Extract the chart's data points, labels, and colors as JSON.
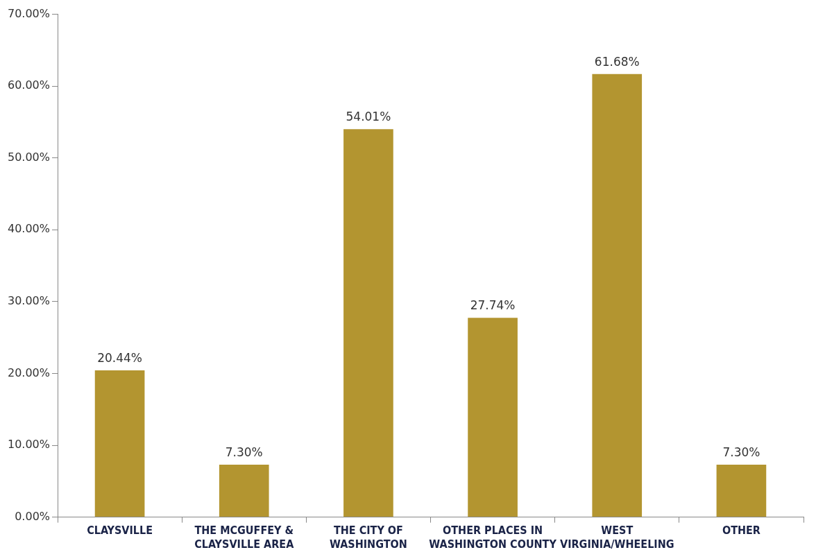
{
  "chart_data": {
    "type": "bar",
    "categories": [
      "CLAYSVILLE",
      "THE MCGUFFEY & CLAYSVILLE AREA",
      "THE CITY OF WASHINGTON",
      "OTHER PLACES IN WASHINGTON COUNTY",
      "WEST VIRGINIA/WHEELING",
      "OTHER"
    ],
    "values": [
      20.44,
      7.3,
      54.01,
      27.74,
      61.68,
      7.3
    ],
    "value_labels": [
      "20.44%",
      "7.30%",
      "54.01%",
      "27.74%",
      "61.68%",
      "7.30%"
    ],
    "color": "#b39530",
    "ylim": [
      0,
      70
    ],
    "yticks": [
      {
        "value": 0,
        "label": "0.00%"
      },
      {
        "value": 10,
        "label": "10.00%"
      },
      {
        "value": 20,
        "label": "20.00%"
      },
      {
        "value": 30,
        "label": "30.00%"
      },
      {
        "value": 40,
        "label": "40.00%"
      },
      {
        "value": 50,
        "label": "50.00%"
      },
      {
        "value": 60,
        "label": "60.00%"
      },
      {
        "value": 70,
        "label": "70.00%"
      }
    ],
    "grid": false,
    "legend": false
  }
}
